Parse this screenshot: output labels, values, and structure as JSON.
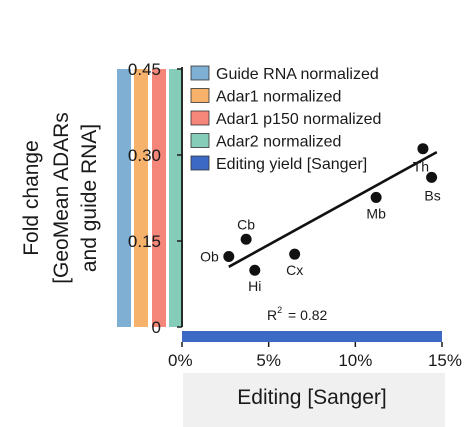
{
  "chart_data": {
    "type": "scatter",
    "xlabel": "Editing [Sanger]",
    "ylabel_lines": [
      "Fold change",
      "[GeoMean ADARs",
      "and guide RNA]"
    ],
    "x_ticks": [
      "0%",
      "5%",
      "10%",
      "15%"
    ],
    "y_ticks": [
      "0",
      "0.15",
      "0.30",
      "0.45"
    ],
    "xlim": [
      0,
      15
    ],
    "ylim": [
      0,
      0.45
    ],
    "legend": [
      {
        "label": "Guide RNA normalized",
        "color": "#7fb0d3"
      },
      {
        "label": "Adar1 normalized",
        "color": "#f6b26b"
      },
      {
        "label": "Adar1 p150 normalized",
        "color": "#f4877a"
      },
      {
        "label": "Adar2 normalized",
        "color": "#86cdb9"
      },
      {
        "label": "Editing yield [Sanger]",
        "color": "#3b69c3"
      }
    ],
    "bars": [
      {
        "name": "Guide RNA normalized",
        "value": 0.45,
        "color": "#7fb0d3"
      },
      {
        "name": "Adar1 normalized",
        "value": 0.45,
        "color": "#f6b26b"
      },
      {
        "name": "Adar1 p150 normalized",
        "value": 0.45,
        "color": "#f4877a"
      },
      {
        "name": "Adar2 normalized",
        "value": 0.45,
        "color": "#86cdb9"
      }
    ],
    "editing_bar": {
      "name": "Editing yield [Sanger]",
      "value": 15,
      "color": "#3b69c3"
    },
    "points": [
      {
        "label": "Ob",
        "x": 2.7,
        "y": 0.123,
        "anchor": "left"
      },
      {
        "label": "Cb",
        "x": 3.7,
        "y": 0.153,
        "anchor": "above"
      },
      {
        "label": "Hi",
        "x": 4.2,
        "y": 0.099,
        "anchor": "below"
      },
      {
        "label": "Cx",
        "x": 6.5,
        "y": 0.127,
        "anchor": "below"
      },
      {
        "label": "Mb",
        "x": 11.2,
        "y": 0.226,
        "anchor": "below"
      },
      {
        "label": "Th",
        "x": 13.9,
        "y": 0.311,
        "anchor": "below"
      },
      {
        "label": "Bs",
        "x": 14.4,
        "y": 0.261,
        "anchor": "below"
      }
    ],
    "fit_line": {
      "x": [
        2.7,
        14.7
      ],
      "y": [
        0.105,
        0.305
      ]
    },
    "r2_label": {
      "text": "= 0.82",
      "prefix": "R",
      "superscript": "2"
    }
  }
}
